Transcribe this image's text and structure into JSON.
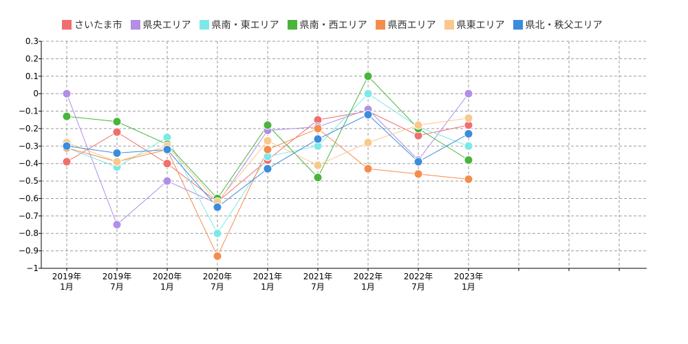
{
  "chart_data": {
    "type": "line",
    "title": "",
    "xlabel": "",
    "ylabel": "",
    "ylim": [
      -1,
      0.3
    ],
    "yticks": [
      "0.3",
      "0.2",
      "0.1",
      "0",
      "−0.1",
      "−0.2",
      "−0.3",
      "−0.4",
      "−0.5",
      "−0.6",
      "−0.7",
      "−0.8",
      "−0.9",
      "−1"
    ],
    "categories": [
      [
        "2019年",
        "1月"
      ],
      [
        "2019年",
        "7月"
      ],
      [
        "2020年",
        "1月"
      ],
      [
        "2020年",
        "7月"
      ],
      [
        "2021年",
        "1月"
      ],
      [
        "2021年",
        "7月"
      ],
      [
        "2022年",
        "1月"
      ],
      [
        "2022年",
        "7月"
      ],
      [
        "2023年",
        "1月"
      ]
    ],
    "grid": true,
    "legend_position": "top",
    "series": [
      {
        "name": "さいたま市",
        "color": "#f06e6e",
        "values": [
          -0.39,
          -0.22,
          -0.4,
          -0.62,
          -0.38,
          -0.15,
          -0.1,
          -0.24,
          -0.18
        ]
      },
      {
        "name": "県央エリア",
        "color": "#b28ee8",
        "values": [
          0.0,
          -0.75,
          -0.5,
          -0.63,
          -0.21,
          -0.19,
          -0.09,
          -0.38,
          0.0
        ]
      },
      {
        "name": "県南・東エリア",
        "color": "#7ee8e8",
        "values": [
          -0.31,
          -0.42,
          -0.25,
          -0.8,
          -0.36,
          -0.3,
          0.0,
          -0.19,
          -0.3
        ]
      },
      {
        "name": "県南・西エリア",
        "color": "#4ab43c",
        "values": [
          -0.13,
          -0.16,
          -0.29,
          -0.6,
          -0.18,
          -0.48,
          0.1,
          -0.2,
          -0.38
        ]
      },
      {
        "name": "県西エリア",
        "color": "#f58c4c",
        "values": [
          -0.31,
          -0.39,
          -0.32,
          -0.93,
          -0.32,
          -0.2,
          -0.43,
          -0.46,
          -0.49
        ]
      },
      {
        "name": "県東エリア",
        "color": "#fac88c",
        "values": [
          -0.28,
          -0.39,
          -0.3,
          -0.62,
          -0.27,
          -0.41,
          -0.28,
          -0.18,
          -0.14
        ]
      },
      {
        "name": "県北・秩父エリア",
        "color": "#3c8cdc",
        "values": [
          -0.3,
          -0.34,
          -0.32,
          -0.65,
          -0.43,
          -0.26,
          -0.12,
          -0.39,
          -0.23
        ]
      }
    ]
  }
}
